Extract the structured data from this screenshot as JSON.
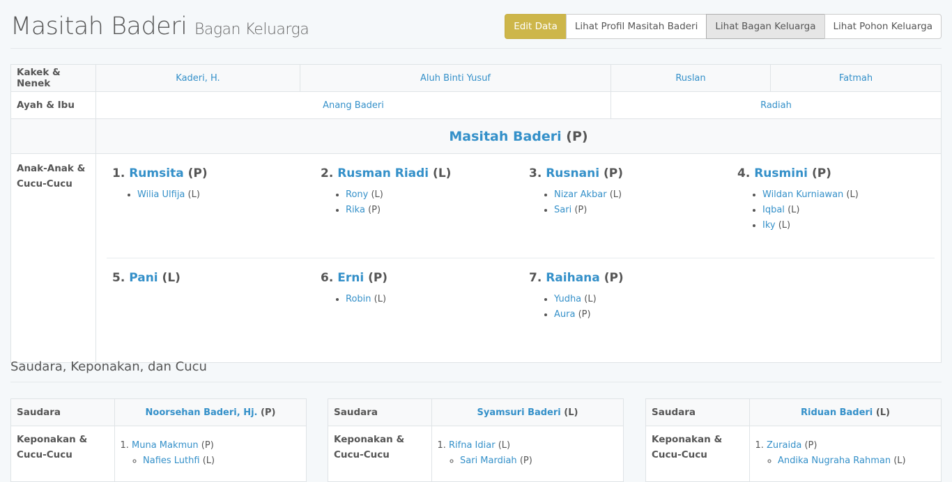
{
  "header": {
    "name": "Masitah Baderi",
    "subtitle": "Bagan Keluarga"
  },
  "buttons": {
    "edit": "Edit Data",
    "profile": "Lihat Profil Masitah Baderi",
    "chart": "Lihat Bagan Keluarga",
    "tree": "Lihat Pohon Keluarga"
  },
  "colors": {
    "accent": "#cdb64a",
    "link": "#3490c9"
  },
  "main": {
    "grandparents_label": "Kakek & Nenek",
    "grandparents": [
      "Kaderi, H.",
      "Aluh Binti Yusuf",
      "Ruslan",
      "Fatmah"
    ],
    "parents_label": "Ayah & Ibu",
    "parents": [
      "Anang Baderi",
      "Radiah"
    ],
    "person": {
      "name": "Masitah Baderi",
      "gender": "(P)"
    },
    "children_label": "Anak-Anak & Cucu-Cucu",
    "children": [
      {
        "num": "1.",
        "name": "Rumsita",
        "gender": "(P)",
        "kids": [
          {
            "name": "Wilia Ulfija",
            "gender": "(L)"
          }
        ]
      },
      {
        "num": "2.",
        "name": "Rusman Riadi",
        "gender": "(L)",
        "kids": [
          {
            "name": "Rony",
            "gender": "(L)"
          },
          {
            "name": "Rika",
            "gender": "(P)"
          }
        ]
      },
      {
        "num": "3.",
        "name": "Rusnani",
        "gender": "(P)",
        "kids": [
          {
            "name": "Nizar Akbar",
            "gender": "(L)"
          },
          {
            "name": "Sari",
            "gender": "(P)"
          }
        ]
      },
      {
        "num": "4.",
        "name": "Rusmini",
        "gender": "(P)",
        "kids": [
          {
            "name": "Wildan Kurniawan",
            "gender": "(L)"
          },
          {
            "name": "Iqbal",
            "gender": "(L)"
          },
          {
            "name": "Iky",
            "gender": "(L)"
          }
        ]
      },
      {
        "num": "5.",
        "name": "Pani",
        "gender": "(L)",
        "kids": []
      },
      {
        "num": "6.",
        "name": "Erni",
        "gender": "(P)",
        "kids": [
          {
            "name": "Robin",
            "gender": "(L)"
          }
        ]
      },
      {
        "num": "7.",
        "name": "Raihana",
        "gender": "(P)",
        "kids": [
          {
            "name": "Yudha",
            "gender": "(L)"
          },
          {
            "name": "Aura",
            "gender": "(P)"
          }
        ]
      }
    ]
  },
  "siblings_title": "Saudara, Keponakan, dan Cucu",
  "siblings": [
    {
      "label": "Saudara",
      "name": "Noorsehan Baderi, Hj.",
      "gender": "(P)",
      "nephews_label": "Keponakan & Cucu-Cucu",
      "nephews": [
        {
          "num": "1",
          "name": "Muna Makmun",
          "gender": "(P)",
          "kids": [
            {
              "name": "Nafies Luthfi",
              "gender": "(L)"
            }
          ]
        }
      ]
    },
    {
      "label": "Saudara",
      "name": "Syamsuri Baderi",
      "gender": "(L)",
      "nephews_label": "Keponakan & Cucu-Cucu",
      "nephews": [
        {
          "num": "1",
          "name": "Rifna Idiar",
          "gender": "(L)",
          "kids": [
            {
              "name": "Sari Mardiah",
              "gender": "(P)"
            }
          ]
        }
      ]
    },
    {
      "label": "Saudara",
      "name": "Riduan Baderi",
      "gender": "(L)",
      "nephews_label": "Keponakan & Cucu-Cucu",
      "nephews": [
        {
          "num": "1",
          "name": "Zuraida",
          "gender": "(P)",
          "kids": [
            {
              "name": "Andika Nugraha Rahman",
              "gender": "(L)"
            }
          ]
        }
      ]
    }
  ]
}
